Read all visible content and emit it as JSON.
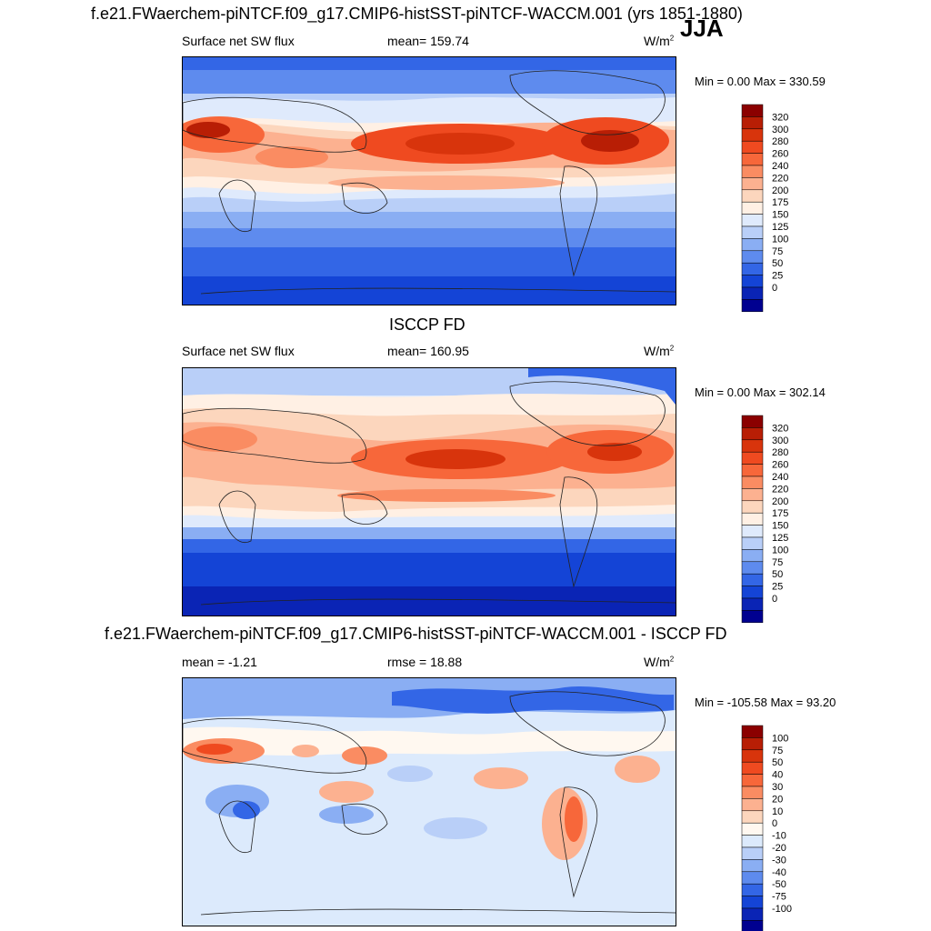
{
  "main_title": "f.e21.FWaerchem-piNTCF.f09_g17.CMIP6-histSST-piNTCF-WACCM.001 (yrs 1851-1880)",
  "season": "JJA",
  "panels": [
    {
      "id": "model",
      "left_label": "Surface net SW flux",
      "center_label": "mean= 159.74",
      "units_base": "W/m",
      "units_exp": "2",
      "minmax": "Min =   0.00 Max = 330.59",
      "colorbar": {
        "labels": [
          "320",
          "300",
          "280",
          "260",
          "240",
          "220",
          "200",
          "175",
          "150",
          "125",
          "100",
          "75",
          "50",
          "25",
          "0"
        ],
        "colors": [
          "#8b0000",
          "#b81e05",
          "#d8340c",
          "#ef4a20",
          "#f7673a",
          "#fa8c62",
          "#fcb190",
          "#fcd6bd",
          "#fff0e4",
          "#dfeafc",
          "#b9cff8",
          "#8aaef3",
          "#5e8bee",
          "#3366e6",
          "#1444d6",
          "#0a24b5",
          "#000090"
        ]
      }
    },
    {
      "id": "obs",
      "heading": "ISCCP FD",
      "left_label": "Surface net SW flux",
      "center_label": "mean= 160.95",
      "units_base": "W/m",
      "units_exp": "2",
      "minmax": "Min =   0.00 Max = 302.14",
      "colorbar": {
        "labels": [
          "320",
          "300",
          "280",
          "260",
          "240",
          "220",
          "200",
          "175",
          "150",
          "125",
          "100",
          "75",
          "50",
          "25",
          "0"
        ],
        "colors": [
          "#8b0000",
          "#b81e05",
          "#d8340c",
          "#ef4a20",
          "#f7673a",
          "#fa8c62",
          "#fcb190",
          "#fcd6bd",
          "#fff0e4",
          "#dfeafc",
          "#b9cff8",
          "#8aaef3",
          "#5e8bee",
          "#3366e6",
          "#1444d6",
          "#0a24b5",
          "#000090"
        ]
      }
    },
    {
      "id": "diff",
      "heading": "f.e21.FWaerchem-piNTCF.f09_g17.CMIP6-histSST-piNTCF-WACCM.001 - ISCCP FD",
      "left_label": "mean =  -1.21",
      "center_label": "rmse =  18.88",
      "units_base": "W/m",
      "units_exp": "2",
      "minmax": "Min = -105.58 Max =  93.20",
      "colorbar": {
        "labels": [
          "100",
          "75",
          "50",
          "40",
          "30",
          "20",
          "10",
          "0",
          "-10",
          "-20",
          "-30",
          "-40",
          "-50",
          "-75",
          "-100"
        ],
        "colors": [
          "#8b0000",
          "#b81e05",
          "#d8340c",
          "#ef4a20",
          "#f7673a",
          "#fa8c62",
          "#fcb190",
          "#fcd6bd",
          "#fff8f0",
          "#dceafc",
          "#b9cff8",
          "#8aaef3",
          "#5e8bee",
          "#3366e6",
          "#1444d6",
          "#0a24b5",
          "#000090"
        ]
      }
    }
  ]
}
